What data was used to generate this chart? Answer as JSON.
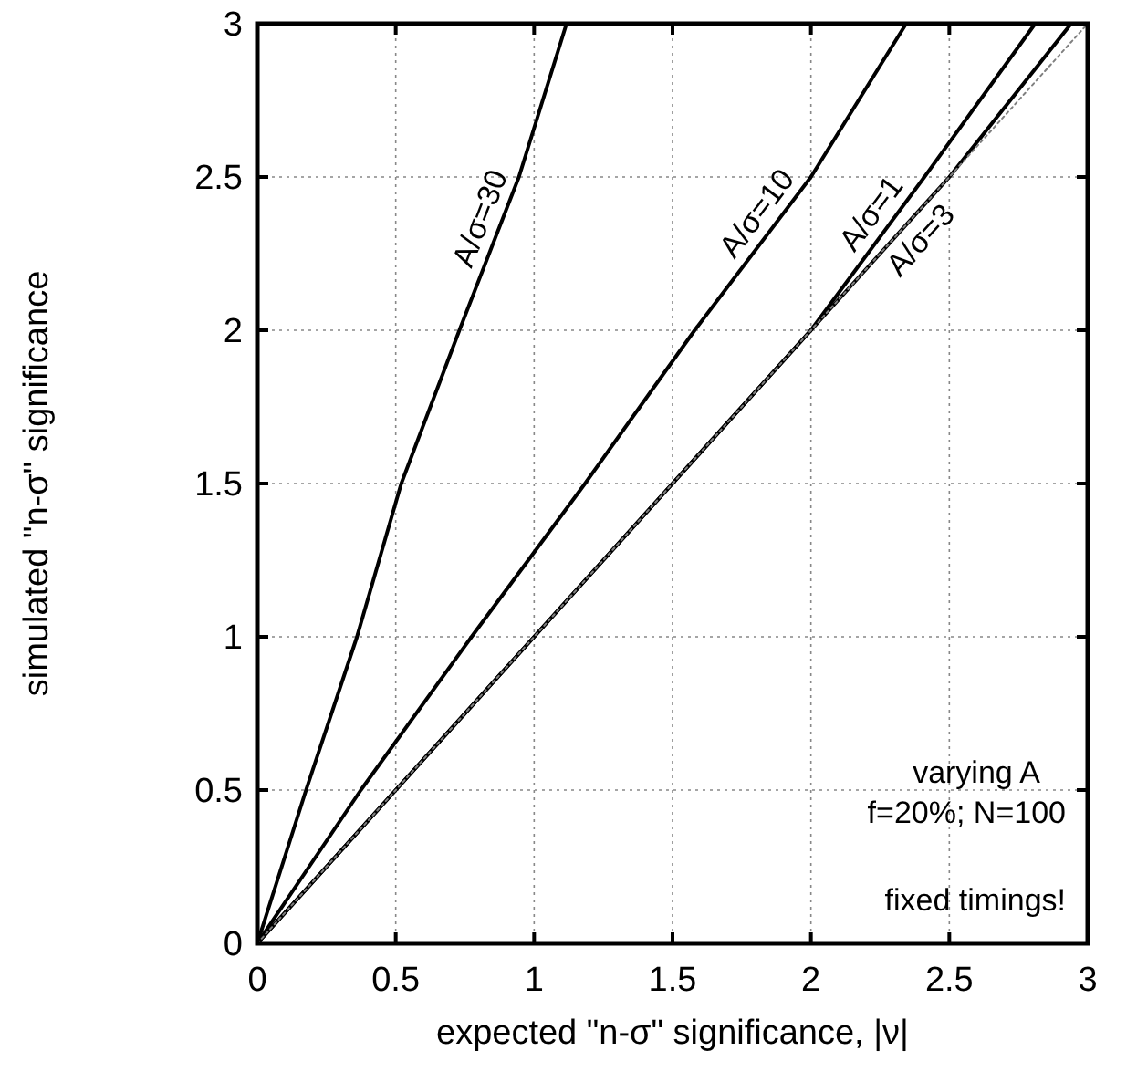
{
  "chart_data": {
    "type": "line",
    "xlabel": "expected \"n-σ\" significance, |ν|",
    "ylabel": "simulated \"n-σ\" significance",
    "xlim": [
      0,
      3
    ],
    "ylim": [
      0,
      3
    ],
    "xticks": [
      0,
      0.5,
      1,
      1.5,
      2,
      2.5,
      3
    ],
    "yticks": [
      0,
      0.5,
      1,
      1.5,
      2,
      2.5,
      3
    ],
    "grid": true,
    "series": [
      {
        "name": "A/σ=30",
        "color": "#000000",
        "x": [
          0,
          0.176,
          0.36,
          0.52,
          0.73,
          0.945,
          1.117
        ],
        "values": [
          0,
          0.5,
          1,
          1.5,
          2,
          2.5,
          3
        ]
      },
      {
        "name": "A/σ=10",
        "color": "#000000",
        "x": [
          0,
          0.374,
          0.774,
          1.184,
          1.58,
          2.0,
          2.344
        ],
        "values": [
          0,
          0.5,
          1,
          1.5,
          2,
          2.5,
          3
        ]
      },
      {
        "name": "A/σ=1",
        "color": "#000000",
        "x": [
          0,
          0.5,
          1,
          1.5,
          2,
          2.41,
          2.81
        ],
        "values": [
          0,
          0.5,
          1,
          1.5,
          2,
          2.5,
          3
        ]
      },
      {
        "name": "A/σ=3",
        "color": "#000000",
        "x": [
          0,
          0.5,
          1,
          1.5,
          2,
          2.5,
          2.94
        ],
        "values": [
          0,
          0.5,
          1,
          1.5,
          2,
          2.5,
          3
        ]
      },
      {
        "color": "#808080",
        "line_style": "dotted",
        "x": [
          0,
          3
        ],
        "values": [
          0,
          3
        ]
      }
    ],
    "annotations": [
      "varying A\nf=20%; N=100",
      "fixed timings!"
    ]
  }
}
